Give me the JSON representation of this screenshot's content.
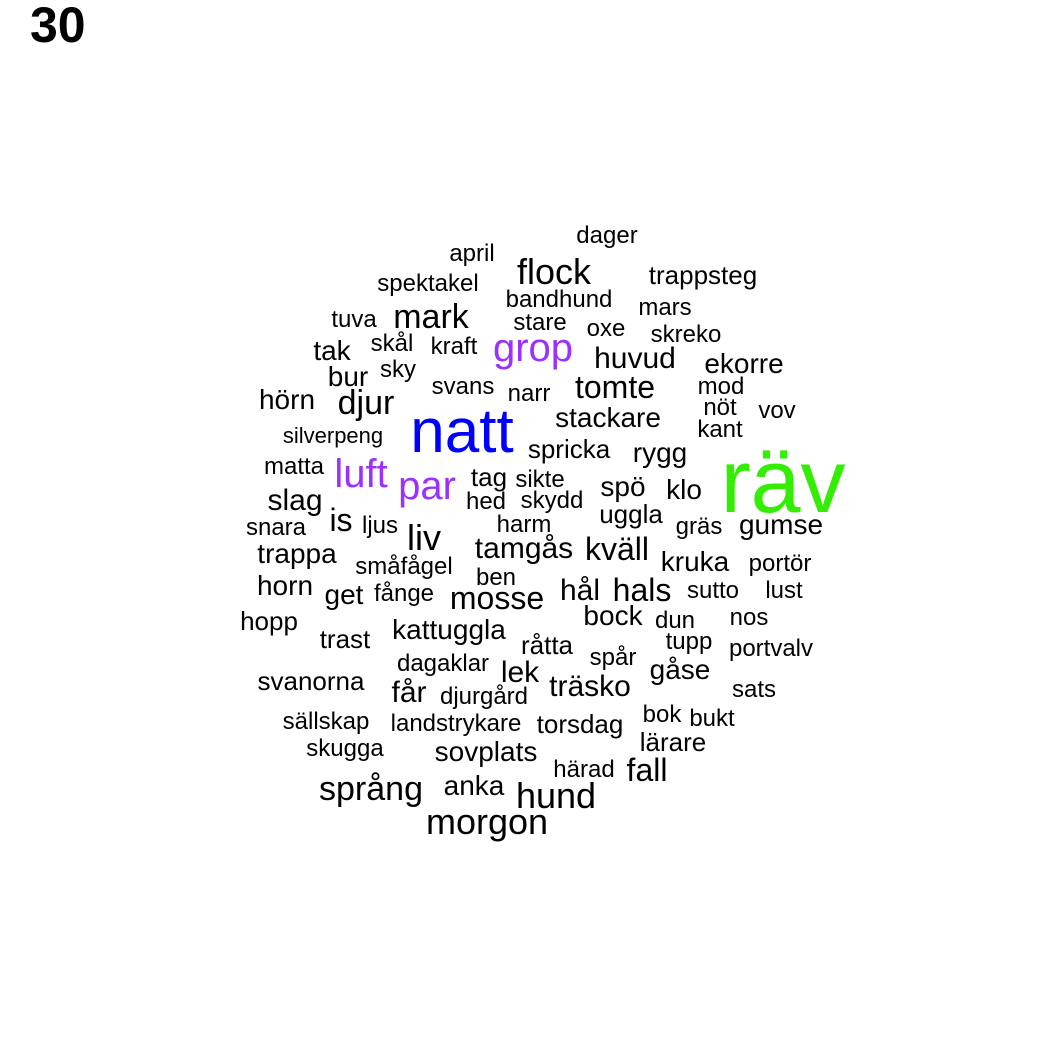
{
  "page_number": "30",
  "colors": {
    "default": "#000000",
    "blue": "#0000ff",
    "purple": "#9b30ff",
    "green": "#33ee00"
  },
  "words": [
    {
      "text": "räv",
      "color": "#33ee00"
    },
    {
      "text": "natt",
      "color": "#0000ff"
    },
    {
      "text": "grop",
      "color": "#9b30ff"
    },
    {
      "text": "luft",
      "color": "#9b30ff"
    },
    {
      "text": "par",
      "color": "#9b30ff"
    },
    {
      "text": "dager"
    },
    {
      "text": "april"
    },
    {
      "text": "flock"
    },
    {
      "text": "trappsteg"
    },
    {
      "text": "spektakel"
    },
    {
      "text": "bandhund"
    },
    {
      "text": "mars"
    },
    {
      "text": "tuva"
    },
    {
      "text": "mark"
    },
    {
      "text": "stare"
    },
    {
      "text": "oxe"
    },
    {
      "text": "skreko"
    },
    {
      "text": "tak"
    },
    {
      "text": "skål"
    },
    {
      "text": "kraft"
    },
    {
      "text": "huvud"
    },
    {
      "text": "ekorre"
    },
    {
      "text": "bur"
    },
    {
      "text": "sky"
    },
    {
      "text": "svans"
    },
    {
      "text": "narr"
    },
    {
      "text": "tomte"
    },
    {
      "text": "mod"
    },
    {
      "text": "hörn"
    },
    {
      "text": "djur"
    },
    {
      "text": "nöt"
    },
    {
      "text": "vov"
    },
    {
      "text": "stackare"
    },
    {
      "text": "kant"
    },
    {
      "text": "silverpeng"
    },
    {
      "text": "spricka"
    },
    {
      "text": "rygg"
    },
    {
      "text": "matta"
    },
    {
      "text": "tag"
    },
    {
      "text": "sikte"
    },
    {
      "text": "spö"
    },
    {
      "text": "klo"
    },
    {
      "text": "slag"
    },
    {
      "text": "hed"
    },
    {
      "text": "skydd"
    },
    {
      "text": "uggla"
    },
    {
      "text": "is"
    },
    {
      "text": "ljus"
    },
    {
      "text": "harm"
    },
    {
      "text": "gräs"
    },
    {
      "text": "gumse"
    },
    {
      "text": "snara"
    },
    {
      "text": "liv"
    },
    {
      "text": "tamgås"
    },
    {
      "text": "kväll"
    },
    {
      "text": "trappa"
    },
    {
      "text": "kruka"
    },
    {
      "text": "småfågel"
    },
    {
      "text": "portör"
    },
    {
      "text": "ben"
    },
    {
      "text": "horn"
    },
    {
      "text": "hål"
    },
    {
      "text": "hals"
    },
    {
      "text": "sutto"
    },
    {
      "text": "lust"
    },
    {
      "text": "get"
    },
    {
      "text": "fånge"
    },
    {
      "text": "mosse"
    },
    {
      "text": "bock"
    },
    {
      "text": "hopp"
    },
    {
      "text": "dun"
    },
    {
      "text": "nos"
    },
    {
      "text": "kattuggla"
    },
    {
      "text": "trast"
    },
    {
      "text": "råtta"
    },
    {
      "text": "tupp"
    },
    {
      "text": "portvalv"
    },
    {
      "text": "spår"
    },
    {
      "text": "dagaklar"
    },
    {
      "text": "gåse"
    },
    {
      "text": "lek"
    },
    {
      "text": "svanorna"
    },
    {
      "text": "träsko"
    },
    {
      "text": "får"
    },
    {
      "text": "sats"
    },
    {
      "text": "djurgård"
    },
    {
      "text": "bok"
    },
    {
      "text": "bukt"
    },
    {
      "text": "sällskap"
    },
    {
      "text": "landstrykare"
    },
    {
      "text": "torsdag"
    },
    {
      "text": "lärare"
    },
    {
      "text": "skugga"
    },
    {
      "text": "sovplats"
    },
    {
      "text": "härad"
    },
    {
      "text": "fall"
    },
    {
      "text": "språng"
    },
    {
      "text": "anka"
    },
    {
      "text": "hund"
    },
    {
      "text": "morgon"
    }
  ]
}
